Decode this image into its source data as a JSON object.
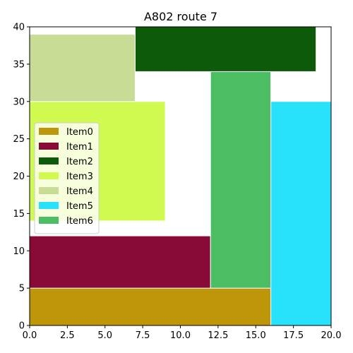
{
  "chart_data": {
    "type": "treemap",
    "title": "A802 route 7",
    "xlabel": "",
    "ylabel": "",
    "xlim": [
      0,
      20
    ],
    "ylim": [
      0,
      40
    ],
    "xticks": [
      0.0,
      2.5,
      5.0,
      7.5,
      10.0,
      12.5,
      15.0,
      17.5,
      20.0
    ],
    "xtick_labels": [
      "0.0",
      "2.5",
      "5.0",
      "7.5",
      "10.0",
      "12.5",
      "15.0",
      "17.5",
      "20.0"
    ],
    "yticks": [
      0,
      5,
      10,
      15,
      20,
      25,
      30,
      35,
      40
    ],
    "ytick_labels": [
      "0",
      "5",
      "10",
      "15",
      "20",
      "25",
      "30",
      "35",
      "40"
    ],
    "grid": false,
    "legend_position": "center-left",
    "series": [
      {
        "name": "Item0",
        "color": "#be960a",
        "x0": 0.0,
        "x1": 16.0,
        "y0": 0.0,
        "y1": 5.0
      },
      {
        "name": "Item1",
        "color": "#870a37",
        "x0": 0.0,
        "x1": 12.0,
        "y0": 5.0,
        "y1": 12.0
      },
      {
        "name": "Item2",
        "color": "#0c5a0a",
        "x0": 7.0,
        "x1": 19.0,
        "y0": 34.0,
        "y1": 40.0
      },
      {
        "name": "Item3",
        "color": "#d0fa50",
        "x0": 0.0,
        "x1": 9.0,
        "y0": 14.0,
        "y1": 30.0
      },
      {
        "name": "Item4",
        "color": "#c8dc96",
        "x0": 0.0,
        "x1": 7.0,
        "y0": 30.0,
        "y1": 39.0
      },
      {
        "name": "Item5",
        "color": "#28e1fa",
        "x0": 16.0,
        "x1": 20.0,
        "y0": 0.0,
        "y1": 30.0
      },
      {
        "name": "Item6",
        "color": "#4bbe64",
        "x0": 12.0,
        "x1": 16.0,
        "y0": 5.0,
        "y1": 34.0
      }
    ]
  }
}
